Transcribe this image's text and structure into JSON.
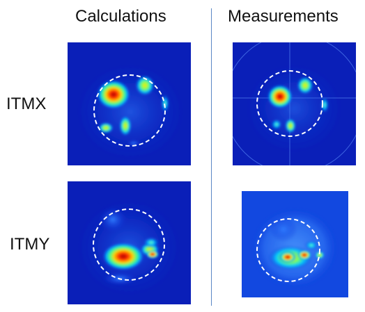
{
  "columns": [
    "Calculations",
    "Measurements"
  ],
  "rows": [
    "ITMX",
    "ITMY"
  ]
}
